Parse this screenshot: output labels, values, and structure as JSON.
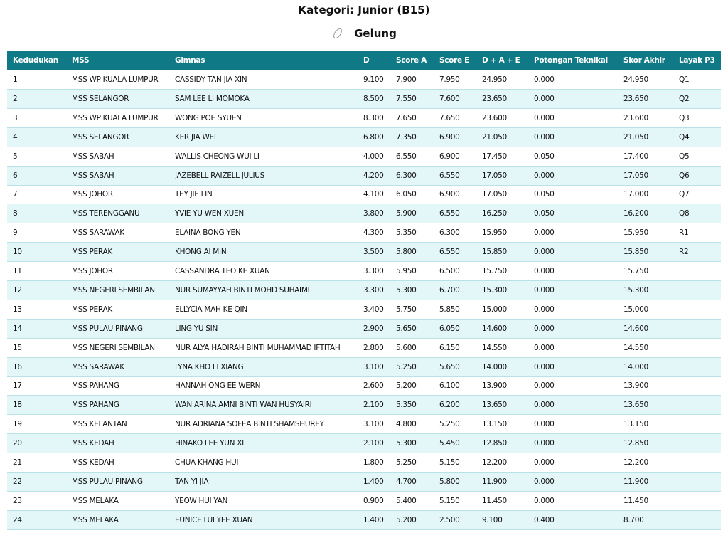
{
  "header": {
    "title": "Kategori: Junior (B15)",
    "subtitle": "Gelung"
  },
  "table": {
    "columns": [
      "Kedudukan",
      "MSS",
      "Gimnas",
      "D",
      "Score A",
      "Score E",
      "D + A + E",
      "Potongan Teknikal",
      "Skor Akhir",
      "Layak P3"
    ],
    "rows": [
      [
        "1",
        "MSS WP KUALA LUMPUR",
        "CASSIDY TAN JIA XIN",
        "9.100",
        "7.900",
        "7.950",
        "24.950",
        "0.000",
        "24.950",
        "Q1"
      ],
      [
        "2",
        "MSS SELANGOR",
        "SAM LEE LI MOMOKA",
        "8.500",
        "7.550",
        "7.600",
        "23.650",
        "0.000",
        "23.650",
        "Q2"
      ],
      [
        "3",
        "MSS WP KUALA LUMPUR",
        "WONG POE SYUEN",
        "8.300",
        "7.650",
        "7.650",
        "23.600",
        "0.000",
        "23.600",
        "Q3"
      ],
      [
        "4",
        "MSS SELANGOR",
        "KER JIA WEI",
        "6.800",
        "7.350",
        "6.900",
        "21.050",
        "0.000",
        "21.050",
        "Q4"
      ],
      [
        "5",
        "MSS SABAH",
        "WALLIS CHEONG WUI LI",
        "4.000",
        "6.550",
        "6.900",
        "17.450",
        "0.050",
        "17.400",
        "Q5"
      ],
      [
        "6",
        "MSS SABAH",
        "JAZEBELL RAIZELL JULIUS",
        "4.200",
        "6.300",
        "6.550",
        "17.050",
        "0.000",
        "17.050",
        "Q6"
      ],
      [
        "7",
        "MSS JOHOR",
        "TEY JIE LIN",
        "4.100",
        "6.050",
        "6.900",
        "17.050",
        "0.050",
        "17.000",
        "Q7"
      ],
      [
        "8",
        "MSS TERENGGANU",
        "YVIE YU WEN XUEN",
        "3.800",
        "5.900",
        "6.550",
        "16.250",
        "0.050",
        "16.200",
        "Q8"
      ],
      [
        "9",
        "MSS SARAWAK",
        "ELAINA BONG YEN",
        "4.300",
        "5.350",
        "6.300",
        "15.950",
        "0.000",
        "15.950",
        "R1"
      ],
      [
        "10",
        "MSS PERAK",
        "KHONG AI MIN",
        "3.500",
        "5.800",
        "6.550",
        "15.850",
        "0.000",
        "15.850",
        "R2"
      ],
      [
        "11",
        "MSS JOHOR",
        "CASSANDRA TEO KE XUAN",
        "3.300",
        "5.950",
        "6.500",
        "15.750",
        "0.000",
        "15.750"
      ],
      [
        "12",
        "MSS NEGERI SEMBILAN",
        "NUR SUMAYYAH BINTI MOHD SUHAIMI",
        "3.300",
        "5.300",
        "6.700",
        "15.300",
        "0.000",
        "15.300"
      ],
      [
        "13",
        "MSS PERAK",
        "ELLYCIA MAH KE QIN",
        "3.400",
        "5.750",
        "5.850",
        "15.000",
        "0.000",
        "15.000"
      ],
      [
        "14",
        "MSS PULAU PINANG",
        "LING YU SIN",
        "2.900",
        "5.650",
        "6.050",
        "14.600",
        "0.000",
        "14.600"
      ],
      [
        "15",
        "MSS NEGERI SEMBILAN",
        "NUR ALYA HADIRAH BINTI MUHAMMAD IFTITAH",
        "2.800",
        "5.600",
        "6.150",
        "14.550",
        "0.000",
        "14.550"
      ],
      [
        "16",
        "MSS SARAWAK",
        "LYNA KHO LI XIANG",
        "3.100",
        "5.250",
        "5.650",
        "14.000",
        "0.000",
        "14.000"
      ],
      [
        "17",
        "MSS PAHANG",
        "HANNAH ONG EE WERN",
        "2.600",
        "5.200",
        "6.100",
        "13.900",
        "0.000",
        "13.900"
      ],
      [
        "18",
        "MSS PAHANG",
        "WAN ARINA AMNI BINTI WAN HUSYAIRI",
        "2.100",
        "5.350",
        "6.200",
        "13.650",
        "0.000",
        "13.650"
      ],
      [
        "19",
        "MSS KELANTAN",
        "NUR ADRIANA SOFEA BINTI SHAMSHUREY",
        "3.100",
        "4.800",
        "5.250",
        "13.150",
        "0.000",
        "13.150"
      ],
      [
        "20",
        "MSS KEDAH",
        "HINAKO LEE YUN XI",
        "2.100",
        "5.300",
        "5.450",
        "12.850",
        "0.000",
        "12.850"
      ],
      [
        "21",
        "MSS KEDAH",
        "CHUA KHANG HUI",
        "1.800",
        "5.250",
        "5.150",
        "12.200",
        "0.000",
        "12.200"
      ],
      [
        "22",
        "MSS PULAU PINANG",
        "TAN YI JIA",
        "1.400",
        "4.700",
        "5.800",
        "11.900",
        "0.000",
        "11.900"
      ],
      [
        "23",
        "MSS MELAKA",
        "YEOW HUI YAN",
        "0.900",
        "5.400",
        "5.150",
        "11.450",
        "0.000",
        "11.450"
      ],
      [
        "24",
        "MSS MELAKA",
        "EUNICE LUI YEE XUAN",
        "1.400",
        "5.200",
        "2.500",
        "9.100",
        "0.400",
        "8.700"
      ]
    ]
  }
}
